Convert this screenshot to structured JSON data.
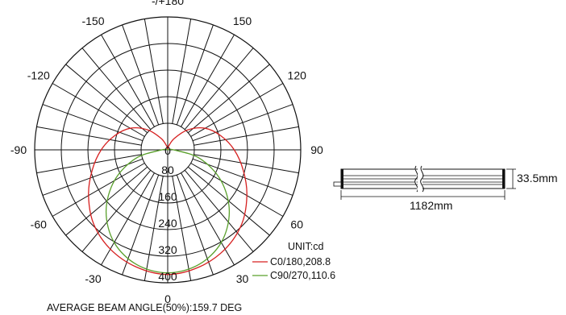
{
  "chart_data": {
    "type": "polar",
    "angle_labels": [
      {
        "angle": 180,
        "text": "-/+180"
      },
      {
        "angle": -150,
        "text": "-150"
      },
      {
        "angle": 150,
        "text": "150"
      },
      {
        "angle": -120,
        "text": "-120"
      },
      {
        "angle": 120,
        "text": "120"
      },
      {
        "angle": -90,
        "text": "-90"
      },
      {
        "angle": 90,
        "text": "90"
      },
      {
        "angle": -60,
        "text": "-60"
      },
      {
        "angle": 60,
        "text": "60"
      },
      {
        "angle": -30,
        "text": "-30"
      },
      {
        "angle": 30,
        "text": "30"
      },
      {
        "angle": 0,
        "text": "0"
      }
    ],
    "radial_ticks": [
      "0",
      "80",
      "160",
      "240",
      "320",
      "400"
    ],
    "r_max": 400,
    "unit_label": "UNIT:cd",
    "series": [
      {
        "name": "C0/180,208.8",
        "color": "#d62020",
        "angles": [
          0,
          15,
          30,
          45,
          60,
          75,
          90,
          105,
          120,
          135,
          150,
          165,
          180
        ],
        "values": [
          375,
          365,
          345,
          315,
          275,
          235,
          200,
          165,
          130,
          85,
          40,
          12,
          0
        ]
      },
      {
        "name": "C90/270,110.6",
        "color": "#5aa02c",
        "angles": [
          0,
          15,
          30,
          45,
          60,
          75,
          90,
          105,
          120
        ],
        "values": [
          370,
          358,
          322,
          262,
          185,
          100,
          18,
          2,
          0
        ]
      }
    ],
    "footer": "AVERAGE BEAM ANGLE(50%):159.7 DEG"
  },
  "dimension": {
    "length_label": "1182mm",
    "height_label": "33.5mm"
  }
}
